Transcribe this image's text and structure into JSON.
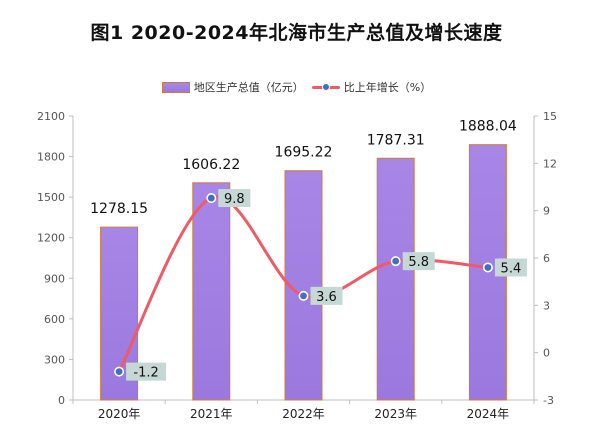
{
  "chart_data": {
    "type": "bar",
    "title": "图1   2020-2024年北海市生产总值及增长速度",
    "categories": [
      "2020年",
      "2021年",
      "2022年",
      "2023年",
      "2024年"
    ],
    "series": [
      {
        "name": "地区生产总值（亿元）",
        "type": "bar",
        "axis": "left",
        "values": [
          1278.15,
          1606.22,
          1695.22,
          1787.31,
          1888.04
        ],
        "labels": [
          "1278.15",
          "1606.22",
          "1695.22",
          "1787.31",
          "1888.04"
        ]
      },
      {
        "name": "比上年增长（%）",
        "type": "line",
        "axis": "right",
        "values": [
          -1.2,
          9.8,
          3.6,
          5.8,
          5.4
        ],
        "labels": [
          "-1.2",
          "9.8",
          "3.6",
          "5.8",
          "5.4"
        ]
      }
    ],
    "y_left": {
      "range": [
        0,
        2100
      ],
      "ticks": [
        "0",
        "300",
        "600",
        "900",
        "1200",
        "1500",
        "1800",
        "2100"
      ]
    },
    "y_right": {
      "range": [
        -3,
        15
      ],
      "ticks": [
        "-3",
        "0",
        "3",
        "6",
        "9",
        "12",
        "15"
      ]
    },
    "grid": false,
    "legend": "top-center",
    "colors": {
      "bar_fill_top": "#a886e6",
      "bar_fill_bottom": "#9b78de",
      "bar_border": "#d07a3a",
      "line": "#ee5a66",
      "marker": "#3f6fc0",
      "label_box": "#c5d8d3"
    }
  }
}
